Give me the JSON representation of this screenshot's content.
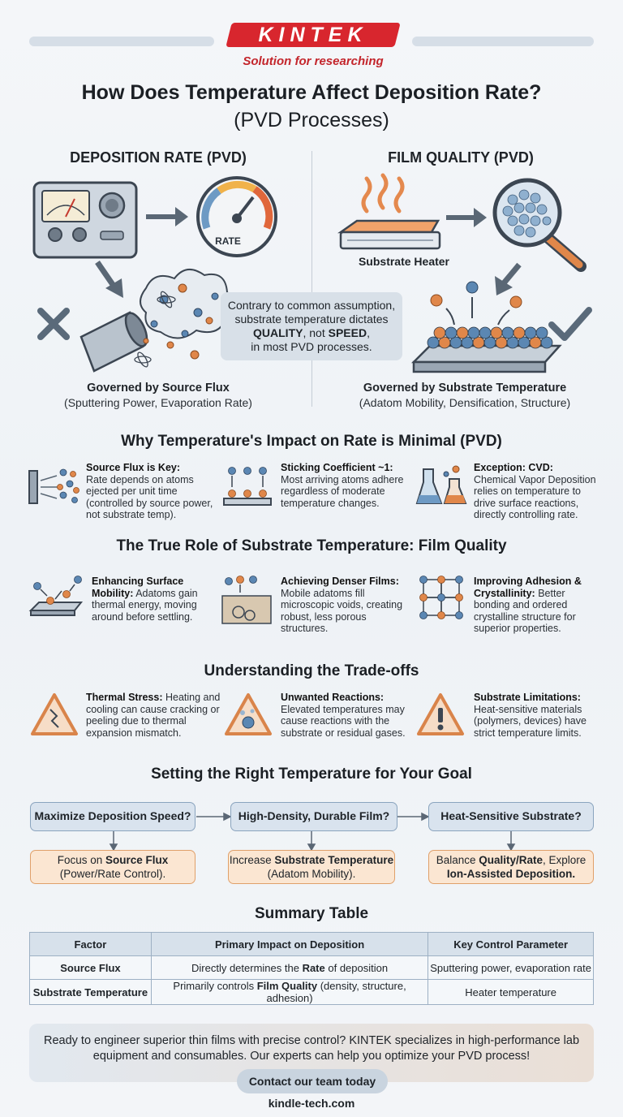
{
  "brand": {
    "logo": "KINTEK",
    "tagline": "Solution for researching"
  },
  "title": {
    "main": "How Does Temperature Affect Deposition Rate?",
    "sub": "(PVD Processes)"
  },
  "left": {
    "heading": "DEPOSITION RATE (PVD)",
    "gauge_label": "RATE",
    "caption_bold": "Governed by Source Flux",
    "caption": "(Sputtering Power, Evaporation Rate)"
  },
  "right": {
    "heading": "FILM QUALITY (PVD)",
    "heater_label": "Substrate Heater",
    "caption_bold": "Governed by Substrate Temperature",
    "caption": "(Adatom Mobility, Densification, Structure)"
  },
  "callout": {
    "line1": "Contrary to common assumption,",
    "line2": "substrate temperature dictates",
    "bold1": "QUALITY",
    "mid": ", not ",
    "bold2": "SPEED",
    "tail": ",",
    "line4": "in most PVD processes."
  },
  "why": {
    "title": "Why Temperature's Impact on Rate is Minimal (PVD)",
    "items": [
      {
        "head": "Source Flux is Key:",
        "body": "Rate depends on atoms ejected per unit time (controlled by source power, not substrate temp)."
      },
      {
        "head": "Sticking Coefficient ~1:",
        "body": "Most arriving atoms adhere regardless of moderate temperature changes."
      },
      {
        "head": "Exception: CVD:",
        "body": "Chemical Vapor Deposition relies on temperature to drive surface reactions, directly controlling rate."
      }
    ]
  },
  "role": {
    "title": "The True Role of Substrate Temperature: Film Quality",
    "items": [
      {
        "head": "Enhancing Surface Mobility:",
        "body": "Adatoms gain thermal energy, moving around before settling."
      },
      {
        "head": "Achieving Denser Films:",
        "body": "Mobile adatoms fill microscopic voids, creating robust, less porous structures."
      },
      {
        "head": "Improving Adhesion & Crystallinity:",
        "body": "Better bonding and ordered crystalline structure for superior properties."
      }
    ]
  },
  "tradeoffs": {
    "title": "Understanding the Trade-offs",
    "items": [
      {
        "head": "Thermal Stress:",
        "body": "Heating and cooling can cause cracking or peeling due to thermal expansion mismatch."
      },
      {
        "head": "Unwanted Reactions:",
        "body": "Elevated temperatures may cause reactions with the substrate or residual gases."
      },
      {
        "head": "Substrate Limitations:",
        "body": "Heat-sensitive materials (polymers, devices) have strict temperature limits."
      }
    ]
  },
  "goal": {
    "title": "Setting the Right Temperature for Your Goal",
    "steps": [
      {
        "question": "Maximize Deposition Speed?",
        "a_pre": "Focus on ",
        "a_bold": "Source Flux",
        "a_post": "",
        "a_line2": "(Power/Rate Control)."
      },
      {
        "question": "High-Density, Durable Film?",
        "a_pre": "Increase ",
        "a_bold": "Substrate Temperature",
        "a_post": "",
        "a_line2": "(Adatom Mobility)."
      },
      {
        "question": "Heat-Sensitive Substrate?",
        "a_pre": "Balance ",
        "a_bold": "Quality/Rate",
        "a_post": ", Explore",
        "a_line2": "Ion-Assisted Deposition."
      }
    ]
  },
  "summary": {
    "title": "Summary Table",
    "headers": [
      "Factor",
      "Primary Impact on Deposition",
      "Key Control Parameter"
    ],
    "rows": [
      {
        "factor": "Source Flux",
        "impact_pre": "Directly determines the ",
        "impact_bold": "Rate",
        "impact_post": " of deposition",
        "control": "Sputtering power, evaporation rate"
      },
      {
        "factor": "Substrate Temperature",
        "impact_pre": "Primarily controls ",
        "impact_bold": "Film Quality",
        "impact_post": " (density, structure, adhesion)",
        "control": "Heater temperature"
      }
    ]
  },
  "cta": {
    "text": "Ready to engineer superior thin films with precise control? KINTEK specializes in high-performance lab equipment and consumables. Our experts can help you optimize your PVD process!",
    "button": "Contact our team today",
    "site": "kindle-tech.com"
  },
  "colors": {
    "brand_red": "#d8262e",
    "accent_blue": "#5b87b3",
    "accent_orange": "#e0874a"
  }
}
